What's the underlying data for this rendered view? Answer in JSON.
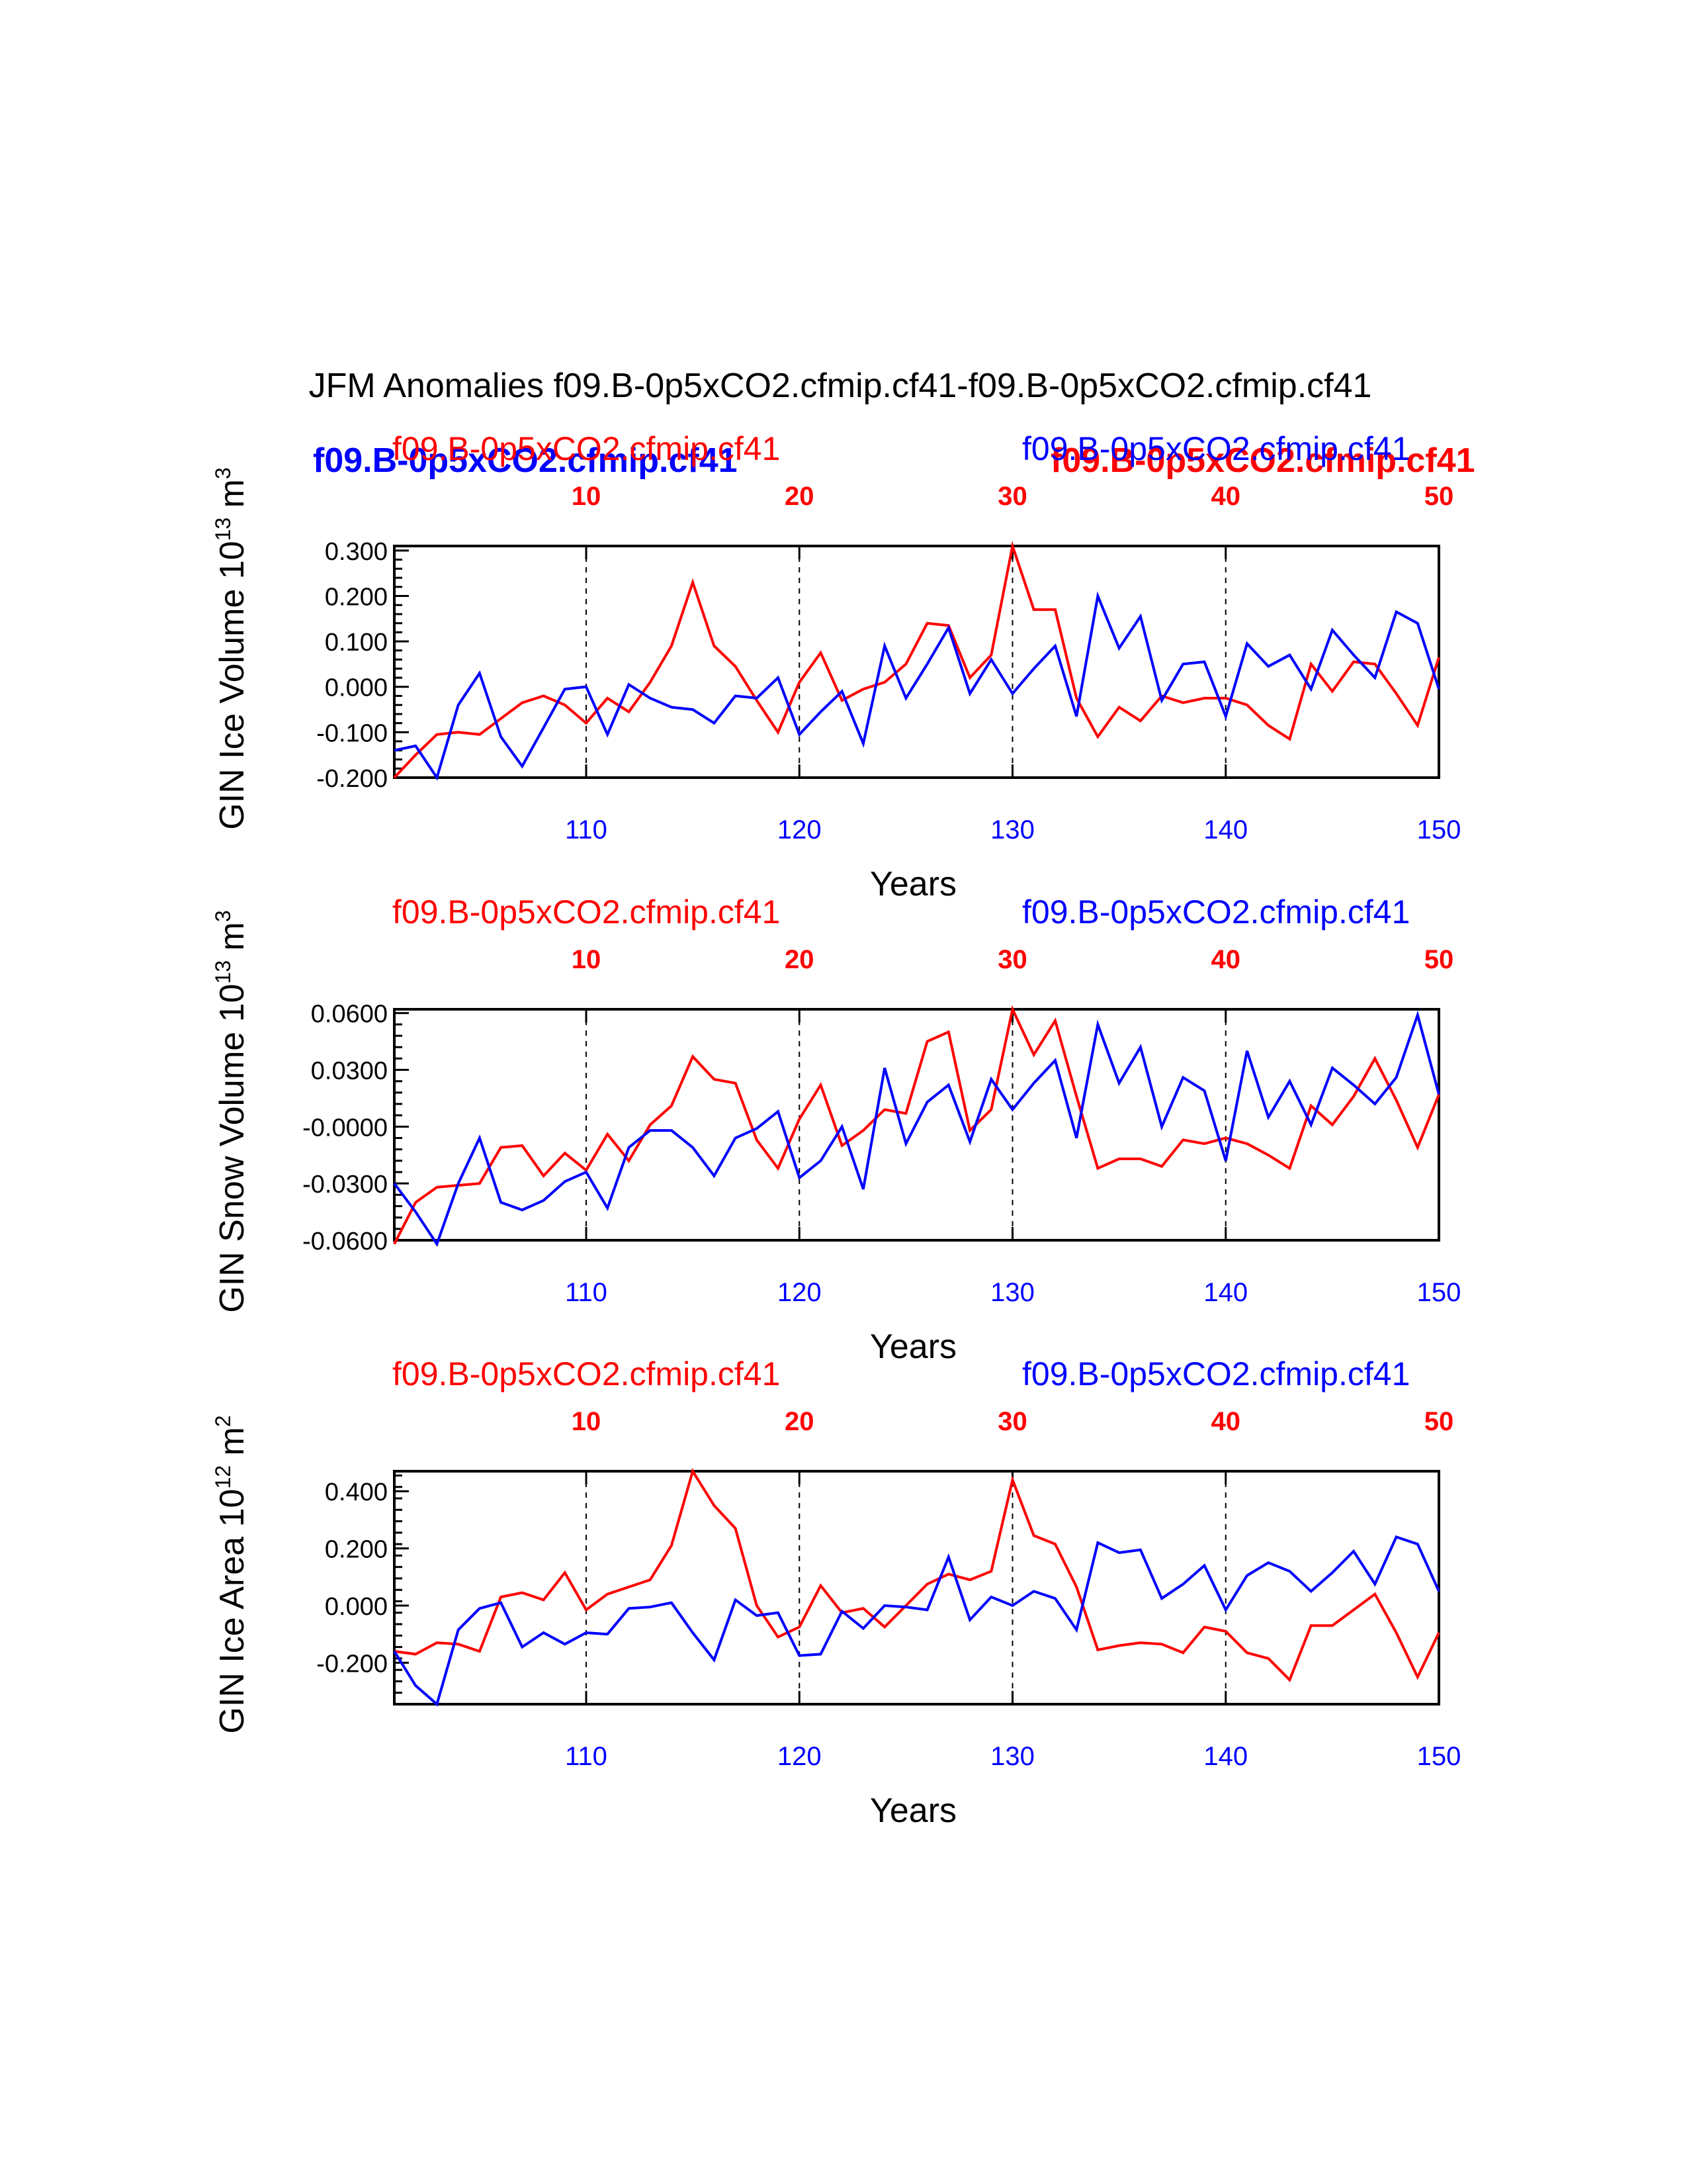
{
  "title": "JFM Anomalies f09.B-0p5xCO2.cfmip.cf41-f09.B-0p5xCO2.cfmip.cf41",
  "colors": {
    "red": "#ff0000",
    "blue": "#0000ff",
    "axis": "#000000"
  },
  "overlay_labels": {
    "left": "f09.B-0p5xCO2.cfmip.cf41",
    "right": "f09.B-0p5xCO2.cfmip.cf41"
  },
  "chart_data": [
    {
      "type": "line",
      "ylabel_main": "GIN Ice Volume 10",
      "ylabel_exp": "13",
      "ylabel_unit": " m",
      "ylabel_unit_exp": "3",
      "xlabel": "Years",
      "red_label": "f09.B-0p5xCO2.cfmip.cf41",
      "blue_label": "f09.B-0p5xCO2.cfmip.cf41",
      "top_ticks": [
        "10",
        "20",
        "30",
        "40",
        "50"
      ],
      "bottom_ticks": [
        "110",
        "120",
        "130",
        "140",
        "150"
      ],
      "ylim": [
        -0.2,
        0.31
      ],
      "yticks": [
        0.3,
        0.2,
        0.1,
        0.0,
        -0.1,
        -0.2
      ],
      "ytick_labels": [
        "0.300",
        "0.200",
        "0.100",
        "0.000",
        "-0.100",
        "-0.200"
      ],
      "x": [
        101,
        102,
        103,
        104,
        105,
        106,
        107,
        108,
        109,
        110,
        111,
        112,
        113,
        114,
        115,
        116,
        117,
        118,
        119,
        120,
        121,
        122,
        123,
        124,
        125,
        126,
        127,
        128,
        129,
        130,
        131,
        132,
        133,
        134,
        135,
        136,
        137,
        138,
        139,
        140,
        141,
        142,
        143,
        144,
        145,
        146,
        147,
        148,
        149,
        150
      ],
      "series": [
        {
          "name": "f09.B-0p5xCO2.cfmip.cf41",
          "color": "red",
          "values": [
            -0.2,
            -0.15,
            -0.105,
            -0.1,
            -0.105,
            -0.07,
            -0.035,
            -0.02,
            -0.04,
            -0.08,
            -0.025,
            -0.055,
            0.01,
            0.09,
            0.23,
            0.09,
            0.045,
            -0.03,
            -0.1,
            0.01,
            0.075,
            -0.03,
            -0.005,
            0.01,
            0.05,
            0.14,
            0.135,
            0.02,
            0.07,
            0.31,
            0.17,
            0.17,
            -0.025,
            -0.11,
            -0.045,
            -0.075,
            -0.02,
            -0.035,
            -0.025,
            -0.025,
            -0.04,
            -0.085,
            -0.115,
            0.05,
            -0.01,
            0.055,
            0.05,
            -0.015,
            -0.085,
            0.065
          ]
        },
        {
          "name": "f09.B-0p5xCO2.cfmip.cf41",
          "color": "blue",
          "values": [
            -0.14,
            -0.13,
            -0.2,
            -0.04,
            0.03,
            -0.11,
            -0.175,
            -0.09,
            -0.005,
            0.0,
            -0.105,
            0.005,
            -0.025,
            -0.045,
            -0.05,
            -0.08,
            -0.02,
            -0.025,
            0.02,
            -0.105,
            -0.055,
            -0.01,
            -0.125,
            0.09,
            -0.025,
            0.05,
            0.13,
            -0.015,
            0.06,
            -0.015,
            0.04,
            0.09,
            -0.065,
            0.2,
            0.085,
            0.155,
            -0.03,
            0.05,
            0.055,
            -0.065,
            0.095,
            0.045,
            0.07,
            -0.005,
            0.125,
            0.07,
            0.02,
            0.165,
            0.14,
            -0.005
          ]
        }
      ]
    },
    {
      "type": "line",
      "ylabel_main": "GIN Snow Volume 10",
      "ylabel_exp": "13",
      "ylabel_unit": " m",
      "ylabel_unit_exp": "3",
      "xlabel": "Years",
      "red_label": "f09.B-0p5xCO2.cfmip.cf41",
      "blue_label": "f09.B-0p5xCO2.cfmip.cf41",
      "top_ticks": [
        "10",
        "20",
        "30",
        "40",
        "50"
      ],
      "bottom_ticks": [
        "110",
        "120",
        "130",
        "140",
        "150"
      ],
      "ylim": [
        -0.06,
        0.062
      ],
      "yticks": [
        0.06,
        0.03,
        0.0,
        -0.03,
        -0.06
      ],
      "ytick_labels": [
        "0.0600",
        "0.0300",
        "-0.0000",
        "-0.0300",
        "-0.0600"
      ],
      "x": [
        101,
        102,
        103,
        104,
        105,
        106,
        107,
        108,
        109,
        110,
        111,
        112,
        113,
        114,
        115,
        116,
        117,
        118,
        119,
        120,
        121,
        122,
        123,
        124,
        125,
        126,
        127,
        128,
        129,
        130,
        131,
        132,
        133,
        134,
        135,
        136,
        137,
        138,
        139,
        140,
        141,
        142,
        143,
        144,
        145,
        146,
        147,
        148,
        149,
        150
      ],
      "series": [
        {
          "name": "f09.B-0p5xCO2.cfmip.cf41",
          "color": "red",
          "values": [
            -0.062,
            -0.04,
            -0.032,
            -0.031,
            -0.03,
            -0.011,
            -0.01,
            -0.026,
            -0.014,
            -0.023,
            -0.004,
            -0.018,
            0.001,
            0.011,
            0.037,
            0.025,
            0.023,
            -0.007,
            -0.022,
            0.004,
            0.022,
            -0.01,
            -0.002,
            0.009,
            0.007,
            0.045,
            0.05,
            -0.002,
            0.009,
            0.062,
            0.038,
            0.056,
            0.016,
            -0.022,
            -0.017,
            -0.017,
            -0.021,
            -0.007,
            -0.009,
            -0.006,
            -0.009,
            -0.015,
            -0.022,
            0.011,
            0.001,
            0.016,
            0.036,
            0.014,
            -0.011,
            0.017
          ]
        },
        {
          "name": "f09.B-0p5xCO2.cfmip.cf41",
          "color": "blue",
          "values": [
            -0.03,
            -0.045,
            -0.062,
            -0.03,
            -0.006,
            -0.04,
            -0.044,
            -0.039,
            -0.029,
            -0.024,
            -0.043,
            -0.011,
            -0.002,
            -0.002,
            -0.011,
            -0.026,
            -0.006,
            -0.001,
            0.008,
            -0.027,
            -0.018,
            0.0,
            -0.033,
            0.031,
            -0.009,
            0.013,
            0.022,
            -0.008,
            0.025,
            0.009,
            0.023,
            0.035,
            -0.006,
            0.054,
            0.023,
            0.042,
            0.0,
            0.026,
            0.019,
            -0.018,
            0.04,
            0.005,
            0.024,
            0.001,
            0.031,
            0.022,
            0.012,
            0.026,
            0.059,
            0.017
          ]
        }
      ]
    },
    {
      "type": "line",
      "ylabel_main": "GIN Ice Area 10",
      "ylabel_exp": "12",
      "ylabel_unit": " m",
      "ylabel_unit_exp": "2",
      "xlabel": "Years",
      "red_label": "f09.B-0p5xCO2.cfmip.cf41",
      "blue_label": "f09.B-0p5xCO2.cfmip.cf41",
      "top_ticks": [
        "10",
        "20",
        "30",
        "40",
        "50"
      ],
      "bottom_ticks": [
        "110",
        "120",
        "130",
        "140",
        "150"
      ],
      "ylim": [
        -0.345,
        0.47
      ],
      "yticks": [
        0.4,
        0.2,
        0.0,
        -0.2
      ],
      "ytick_labels": [
        "0.400",
        "0.200",
        "0.000",
        "-0.200"
      ],
      "x": [
        101,
        102,
        103,
        104,
        105,
        106,
        107,
        108,
        109,
        110,
        111,
        112,
        113,
        114,
        115,
        116,
        117,
        118,
        119,
        120,
        121,
        122,
        123,
        124,
        125,
        126,
        127,
        128,
        129,
        130,
        131,
        132,
        133,
        134,
        135,
        136,
        137,
        138,
        139,
        140,
        141,
        142,
        143,
        144,
        145,
        146,
        147,
        148,
        149,
        150
      ],
      "series": [
        {
          "name": "f09.B-0p5xCO2.cfmip.cf41",
          "color": "red",
          "values": [
            -0.16,
            -0.17,
            -0.13,
            -0.135,
            -0.16,
            0.03,
            0.045,
            0.02,
            0.115,
            -0.015,
            0.04,
            0.065,
            0.09,
            0.21,
            0.47,
            0.35,
            0.27,
            0.0,
            -0.11,
            -0.075,
            0.07,
            -0.025,
            -0.01,
            -0.075,
            0.0,
            0.075,
            0.11,
            0.09,
            0.12,
            0.44,
            0.245,
            0.215,
            0.065,
            -0.155,
            -0.14,
            -0.13,
            -0.135,
            -0.165,
            -0.075,
            -0.09,
            -0.165,
            -0.185,
            -0.26,
            -0.07,
            -0.07,
            -0.015,
            0.04,
            -0.095,
            -0.25,
            -0.095
          ]
        },
        {
          "name": "f09.B-0p5xCO2.cfmip.cf41",
          "color": "blue",
          "values": [
            -0.16,
            -0.28,
            -0.345,
            -0.085,
            -0.01,
            0.01,
            -0.145,
            -0.095,
            -0.135,
            -0.095,
            -0.1,
            -0.01,
            -0.005,
            0.01,
            -0.095,
            -0.19,
            0.02,
            -0.035,
            -0.025,
            -0.175,
            -0.17,
            -0.02,
            -0.08,
            0.0,
            -0.005,
            -0.015,
            0.17,
            -0.05,
            0.03,
            0.0,
            0.05,
            0.025,
            -0.085,
            0.22,
            0.185,
            0.195,
            0.025,
            0.075,
            0.14,
            -0.015,
            0.105,
            0.15,
            0.12,
            0.05,
            0.115,
            0.19,
            0.075,
            0.24,
            0.215,
            0.05
          ]
        }
      ]
    }
  ]
}
